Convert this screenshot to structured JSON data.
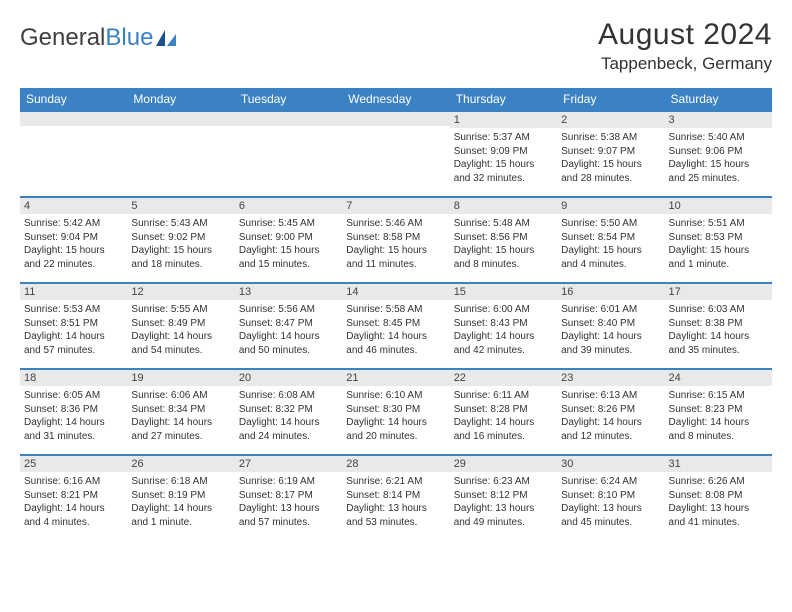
{
  "logo": {
    "text_dark": "General",
    "text_blue": "Blue"
  },
  "header": {
    "month_title": "August 2024",
    "location": "Tappenbeck, Germany"
  },
  "colors": {
    "header_bg": "#3b82c4",
    "header_text": "#ffffff",
    "daynum_bg": "#e9e9e9",
    "border_accent": "#3b82c4",
    "body_text": "#333333"
  },
  "day_headers": [
    "Sunday",
    "Monday",
    "Tuesday",
    "Wednesday",
    "Thursday",
    "Friday",
    "Saturday"
  ],
  "weeks": [
    [
      {
        "n": "",
        "sr": "",
        "ss": "",
        "dl": ""
      },
      {
        "n": "",
        "sr": "",
        "ss": "",
        "dl": ""
      },
      {
        "n": "",
        "sr": "",
        "ss": "",
        "dl": ""
      },
      {
        "n": "",
        "sr": "",
        "ss": "",
        "dl": ""
      },
      {
        "n": "1",
        "sr": "Sunrise: 5:37 AM",
        "ss": "Sunset: 9:09 PM",
        "dl": "Daylight: 15 hours and 32 minutes."
      },
      {
        "n": "2",
        "sr": "Sunrise: 5:38 AM",
        "ss": "Sunset: 9:07 PM",
        "dl": "Daylight: 15 hours and 28 minutes."
      },
      {
        "n": "3",
        "sr": "Sunrise: 5:40 AM",
        "ss": "Sunset: 9:06 PM",
        "dl": "Daylight: 15 hours and 25 minutes."
      }
    ],
    [
      {
        "n": "4",
        "sr": "Sunrise: 5:42 AM",
        "ss": "Sunset: 9:04 PM",
        "dl": "Daylight: 15 hours and 22 minutes."
      },
      {
        "n": "5",
        "sr": "Sunrise: 5:43 AM",
        "ss": "Sunset: 9:02 PM",
        "dl": "Daylight: 15 hours and 18 minutes."
      },
      {
        "n": "6",
        "sr": "Sunrise: 5:45 AM",
        "ss": "Sunset: 9:00 PM",
        "dl": "Daylight: 15 hours and 15 minutes."
      },
      {
        "n": "7",
        "sr": "Sunrise: 5:46 AM",
        "ss": "Sunset: 8:58 PM",
        "dl": "Daylight: 15 hours and 11 minutes."
      },
      {
        "n": "8",
        "sr": "Sunrise: 5:48 AM",
        "ss": "Sunset: 8:56 PM",
        "dl": "Daylight: 15 hours and 8 minutes."
      },
      {
        "n": "9",
        "sr": "Sunrise: 5:50 AM",
        "ss": "Sunset: 8:54 PM",
        "dl": "Daylight: 15 hours and 4 minutes."
      },
      {
        "n": "10",
        "sr": "Sunrise: 5:51 AM",
        "ss": "Sunset: 8:53 PM",
        "dl": "Daylight: 15 hours and 1 minute."
      }
    ],
    [
      {
        "n": "11",
        "sr": "Sunrise: 5:53 AM",
        "ss": "Sunset: 8:51 PM",
        "dl": "Daylight: 14 hours and 57 minutes."
      },
      {
        "n": "12",
        "sr": "Sunrise: 5:55 AM",
        "ss": "Sunset: 8:49 PM",
        "dl": "Daylight: 14 hours and 54 minutes."
      },
      {
        "n": "13",
        "sr": "Sunrise: 5:56 AM",
        "ss": "Sunset: 8:47 PM",
        "dl": "Daylight: 14 hours and 50 minutes."
      },
      {
        "n": "14",
        "sr": "Sunrise: 5:58 AM",
        "ss": "Sunset: 8:45 PM",
        "dl": "Daylight: 14 hours and 46 minutes."
      },
      {
        "n": "15",
        "sr": "Sunrise: 6:00 AM",
        "ss": "Sunset: 8:43 PM",
        "dl": "Daylight: 14 hours and 42 minutes."
      },
      {
        "n": "16",
        "sr": "Sunrise: 6:01 AM",
        "ss": "Sunset: 8:40 PM",
        "dl": "Daylight: 14 hours and 39 minutes."
      },
      {
        "n": "17",
        "sr": "Sunrise: 6:03 AM",
        "ss": "Sunset: 8:38 PM",
        "dl": "Daylight: 14 hours and 35 minutes."
      }
    ],
    [
      {
        "n": "18",
        "sr": "Sunrise: 6:05 AM",
        "ss": "Sunset: 8:36 PM",
        "dl": "Daylight: 14 hours and 31 minutes."
      },
      {
        "n": "19",
        "sr": "Sunrise: 6:06 AM",
        "ss": "Sunset: 8:34 PM",
        "dl": "Daylight: 14 hours and 27 minutes."
      },
      {
        "n": "20",
        "sr": "Sunrise: 6:08 AM",
        "ss": "Sunset: 8:32 PM",
        "dl": "Daylight: 14 hours and 24 minutes."
      },
      {
        "n": "21",
        "sr": "Sunrise: 6:10 AM",
        "ss": "Sunset: 8:30 PM",
        "dl": "Daylight: 14 hours and 20 minutes."
      },
      {
        "n": "22",
        "sr": "Sunrise: 6:11 AM",
        "ss": "Sunset: 8:28 PM",
        "dl": "Daylight: 14 hours and 16 minutes."
      },
      {
        "n": "23",
        "sr": "Sunrise: 6:13 AM",
        "ss": "Sunset: 8:26 PM",
        "dl": "Daylight: 14 hours and 12 minutes."
      },
      {
        "n": "24",
        "sr": "Sunrise: 6:15 AM",
        "ss": "Sunset: 8:23 PM",
        "dl": "Daylight: 14 hours and 8 minutes."
      }
    ],
    [
      {
        "n": "25",
        "sr": "Sunrise: 6:16 AM",
        "ss": "Sunset: 8:21 PM",
        "dl": "Daylight: 14 hours and 4 minutes."
      },
      {
        "n": "26",
        "sr": "Sunrise: 6:18 AM",
        "ss": "Sunset: 8:19 PM",
        "dl": "Daylight: 14 hours and 1 minute."
      },
      {
        "n": "27",
        "sr": "Sunrise: 6:19 AM",
        "ss": "Sunset: 8:17 PM",
        "dl": "Daylight: 13 hours and 57 minutes."
      },
      {
        "n": "28",
        "sr": "Sunrise: 6:21 AM",
        "ss": "Sunset: 8:14 PM",
        "dl": "Daylight: 13 hours and 53 minutes."
      },
      {
        "n": "29",
        "sr": "Sunrise: 6:23 AM",
        "ss": "Sunset: 8:12 PM",
        "dl": "Daylight: 13 hours and 49 minutes."
      },
      {
        "n": "30",
        "sr": "Sunrise: 6:24 AM",
        "ss": "Sunset: 8:10 PM",
        "dl": "Daylight: 13 hours and 45 minutes."
      },
      {
        "n": "31",
        "sr": "Sunrise: 6:26 AM",
        "ss": "Sunset: 8:08 PM",
        "dl": "Daylight: 13 hours and 41 minutes."
      }
    ]
  ]
}
